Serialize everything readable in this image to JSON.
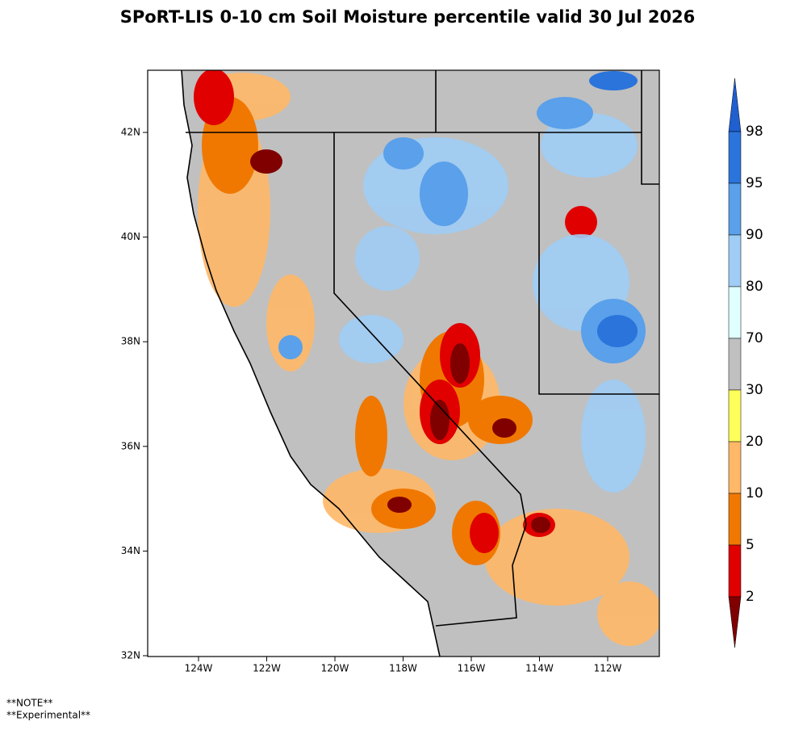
{
  "title": "SPoRT-LIS 0-10 cm Soil Moisture percentile valid 30 Jul 2026",
  "map": {
    "lat_labels": [
      "42N",
      "40N",
      "38N",
      "36N",
      "34N",
      "32N"
    ],
    "lon_labels": [
      "124W",
      "122W",
      "120W",
      "118W",
      "116W",
      "114W",
      "112W"
    ]
  },
  "colorbar": {
    "labels": [
      "98",
      "95",
      "90",
      "80",
      "70",
      "30",
      "20",
      "10",
      "5",
      "2"
    ]
  },
  "notes": [
    "**NOTE**",
    "**Experimental**"
  ]
}
